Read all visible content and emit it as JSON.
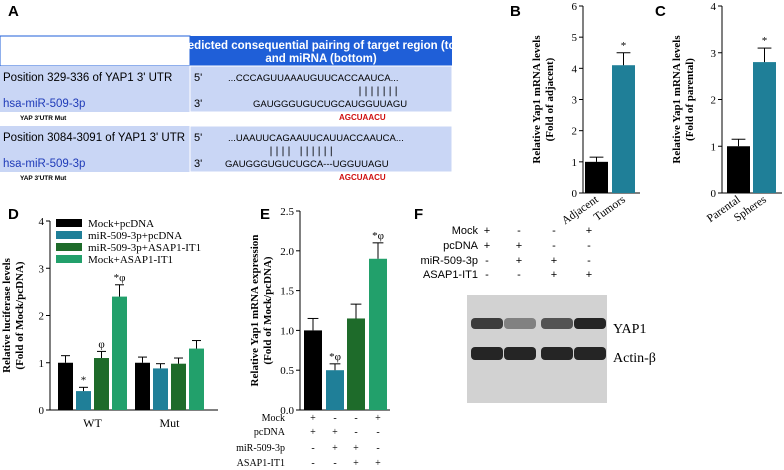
{
  "colors": {
    "black": "#000000",
    "teal": "#1f7f98",
    "dark_green": "#1e6b2a",
    "light_green": "#22a06b",
    "table_header_blue": "#1f5fd8",
    "table_row_blue": "#c9d6f5",
    "mirna_label_blue": "#1f3bb8",
    "mut_red": "#d01010"
  },
  "panel_A": {
    "letter": "A",
    "header": [
      "Predicted consequential pairing of target region (top)",
      "and miRNA (bottom)"
    ],
    "rows": [
      {
        "position": "Position 329-336 of YAP1 3' UTR",
        "mirna": "hsa-miR-509-3p",
        "mut_label": "YAP 3'UTR Mut",
        "five": "5'",
        "three": "3'",
        "top_seq": "...CCCAGUUAAAUGUUCACCAAUCA...",
        "pairs": "|||||||",
        "bottom_seq": "GAUGGGUGUCUGCAUGGUUAGU",
        "mut_seq": "AGCUAACU"
      },
      {
        "position": "Position 3084-3091 of YAP1 3' UTR",
        "mirna": "hsa-miR-509-3p",
        "mut_label": "YAP 3'UTR Mut",
        "five": "5'",
        "three": "3'",
        "top_seq": "...UAAUUCAGAAUUCAUUACCAAUCA...",
        "pairs": "||||     ||||||",
        "bottom_seq": "GAUGGGUGUCUGCA---UGGUUAGU",
        "mut_seq": "AGCUAACU"
      }
    ]
  },
  "western": {
    "letter": "F",
    "conditions": [
      "Mock",
      "pcDNA",
      "miR-509-3p",
      "ASAP1-IT1"
    ],
    "signs": [
      [
        "+",
        "-",
        "-",
        "+"
      ],
      [
        "+",
        "+",
        "-",
        "-"
      ],
      [
        "-",
        "+",
        "+",
        "-"
      ],
      [
        "-",
        "-",
        "+",
        "+"
      ]
    ],
    "band_labels": [
      "YAP1",
      "Actin-β"
    ],
    "yap1_intensity": [
      0.85,
      0.55,
      0.75,
      0.95
    ],
    "actin_intensity": [
      0.95,
      0.95,
      0.95,
      0.95
    ]
  },
  "chart_data": [
    {
      "panel": "B",
      "type": "bar",
      "categories": [
        "Adjacent",
        "Tumors"
      ],
      "values": [
        1.0,
        4.1
      ],
      "errors": [
        0.15,
        0.4
      ],
      "colors": [
        "#000000",
        "#1f7f98"
      ],
      "annotations": [
        "",
        "*"
      ],
      "ylabel": [
        "Relative Yap1 mRNA levels",
        "(Fold of adjacent)"
      ],
      "ylim": [
        0,
        6
      ],
      "yticks": [
        0,
        1,
        2,
        3,
        4,
        5,
        6
      ]
    },
    {
      "panel": "C",
      "type": "bar",
      "categories": [
        "Parental",
        "Spheres"
      ],
      "values": [
        1.0,
        2.8
      ],
      "errors": [
        0.15,
        0.3
      ],
      "colors": [
        "#000000",
        "#1f7f98"
      ],
      "annotations": [
        "",
        "*"
      ],
      "ylabel": [
        "Relative Yap1 mRNA levels",
        "(Fold of parental)"
      ],
      "ylim": [
        0,
        4
      ],
      "yticks": [
        0,
        1,
        2,
        3,
        4
      ]
    },
    {
      "panel": "D",
      "type": "bar",
      "categories": [
        "WT",
        "Mut"
      ],
      "series": [
        {
          "name": "Mock+pcDNA",
          "values": [
            1.0,
            1.0
          ],
          "errors": [
            0.15,
            0.12
          ],
          "color": "#000000",
          "annotations": [
            "",
            ""
          ]
        },
        {
          "name": "miR-509-3p+pcDNA",
          "values": [
            0.4,
            0.88
          ],
          "errors": [
            0.08,
            0.1
          ],
          "color": "#1f7f98",
          "annotations": [
            "*",
            ""
          ]
        },
        {
          "name": "miR-509-3p+ASAP1-IT1",
          "values": [
            1.1,
            0.98
          ],
          "errors": [
            0.14,
            0.12
          ],
          "color": "#1e6b2a",
          "annotations": [
            "φ",
            ""
          ]
        },
        {
          "name": "Mock+ASAP1-IT1",
          "values": [
            2.4,
            1.3
          ],
          "errors": [
            0.25,
            0.17
          ],
          "color": "#22a06b",
          "annotations": [
            "*φ",
            ""
          ]
        }
      ],
      "ylabel": [
        "Relative luciferase levels",
        "(Fold of Mock/pcDNA)"
      ],
      "ylim": [
        0,
        4
      ],
      "yticks": [
        0,
        1,
        2,
        3,
        4
      ],
      "legend": "top-left"
    },
    {
      "panel": "E",
      "type": "bar",
      "values": [
        1.0,
        0.5,
        1.15,
        1.9
      ],
      "errors": [
        0.15,
        0.08,
        0.18,
        0.2
      ],
      "colors": [
        "#000000",
        "#1f7f98",
        "#1e6b2a",
        "#22a06b"
      ],
      "annotations": [
        "",
        "*φ",
        "",
        "*φ"
      ],
      "condition_labels": [
        "Mock",
        "pcDNA",
        "miR-509-3p",
        "ASAP1-IT1"
      ],
      "signs": [
        [
          "+",
          "-",
          "-",
          "+"
        ],
        [
          "+",
          "+",
          "-",
          "-"
        ],
        [
          "-",
          "+",
          "+",
          "-"
        ],
        [
          "-",
          "-",
          "+",
          "+"
        ]
      ],
      "ylabel": [
        "Relative Yap1 mRNA expression",
        "(Fold of Mock/pcDNA)"
      ],
      "ylim": [
        0,
        2.5
      ],
      "yticks": [
        0.0,
        0.5,
        1.0,
        1.5,
        2.0,
        2.5
      ]
    }
  ]
}
